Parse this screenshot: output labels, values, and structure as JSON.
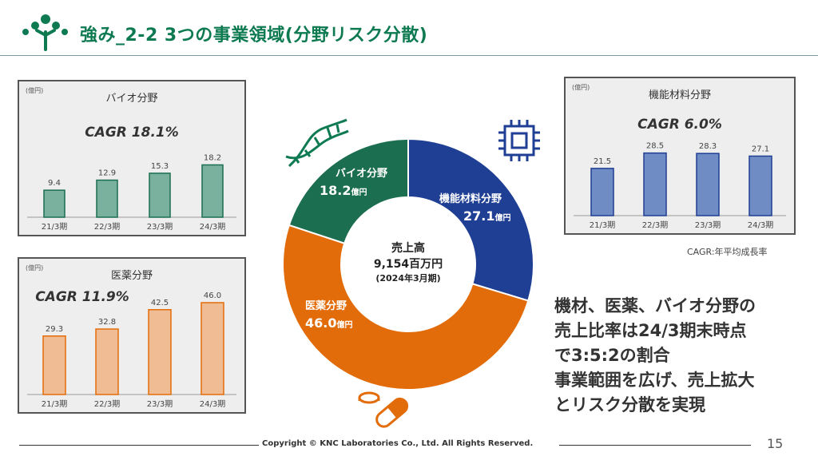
{
  "header": {
    "title": "強み_2-2  3つの事業領域(分野リスク分散)"
  },
  "colors": {
    "brand": "#0e7a52",
    "bio": "#7ab09e",
    "bio_dark": "#1b6e4f",
    "functional": "#6f8cc4",
    "functional_dark": "#1f3f94",
    "pharma": "#efbc94",
    "pharma_dark": "#e36c0a"
  },
  "chart_data": [
    {
      "type": "bar",
      "title": "バイオ分野",
      "unit_label": "(億円)",
      "cagr_label": "CAGR 18.1%",
      "categories": [
        "21/3期",
        "22/3期",
        "23/3期",
        "24/3期"
      ],
      "values": [
        9.4,
        12.9,
        15.3,
        18.2
      ],
      "value_labels": [
        "9.4",
        "12.9",
        "15.3",
        "18.2"
      ],
      "ylim": [
        0,
        20
      ]
    },
    {
      "type": "bar",
      "title": "医薬分野",
      "unit_label": "(億円)",
      "cagr_label": "CAGR 11.9%",
      "categories": [
        "21/3期",
        "22/3期",
        "23/3期",
        "24/3期"
      ],
      "values": [
        29.3,
        32.8,
        42.5,
        46.0
      ],
      "value_labels": [
        "29.3",
        "32.8",
        "42.5",
        "46.0"
      ],
      "ylim": [
        0,
        48
      ]
    },
    {
      "type": "bar",
      "title": "機能材料分野",
      "unit_label": "(億円)",
      "cagr_label": "CAGR 6.0%",
      "categories": [
        "21/3期",
        "22/3期",
        "23/3期",
        "24/3期"
      ],
      "values": [
        21.5,
        28.5,
        28.3,
        27.1
      ],
      "value_labels": [
        "21.5",
        "28.5",
        "28.3",
        "27.1"
      ],
      "ylim": [
        0,
        32
      ]
    },
    {
      "type": "pie",
      "center_lines": [
        "売上高",
        "9,154百万円",
        "(2024年3月期)"
      ],
      "slices": [
        {
          "name": "機能材料分野",
          "value": 27.1,
          "value_text": "27.1",
          "unit": "億円"
        },
        {
          "name": "医薬分野",
          "value": 46.0,
          "value_text": "46.0",
          "unit": "億円"
        },
        {
          "name": "バイオ分野",
          "value": 18.2,
          "value_text": "18.2",
          "unit": "億円"
        }
      ]
    }
  ],
  "note": "CAGR:年平均成長率",
  "message": [
    "機材、医薬、バイオ分野の",
    "売上比率は24/3期末時点",
    "で3:5:2の割合",
    "事業範囲を広げ、売上拡大",
    "とリスク分散を実現"
  ],
  "footer": {
    "copyright": "Copyright © KNC Laboratories Co., Ltd. All Rights Reserved.",
    "page": "15"
  }
}
